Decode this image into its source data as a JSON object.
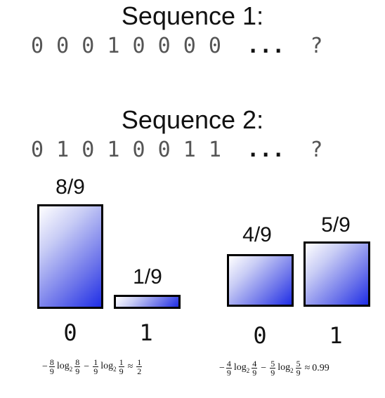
{
  "sequence1": {
    "title": "Sequence 1:",
    "digits": "0 0 0 1 0 0 0 0",
    "ellipsis": "...",
    "question": "?"
  },
  "sequence2": {
    "title": "Sequence 2:",
    "digits": "0 1 0 1 0 0 1 1",
    "ellipsis": "...",
    "question": "?"
  },
  "distribution1": {
    "bars": [
      {
        "symbol": "0",
        "label": "8/9",
        "value": 0.8889
      },
      {
        "symbol": "1",
        "label": "1/9",
        "value": 0.1111
      }
    ],
    "formula": {
      "lead": "−",
      "f1_num": "8",
      "f1_den": "9",
      "log": "log",
      "base": "2",
      "f2_num": "8",
      "f2_den": "9",
      "minus": "−",
      "f3_num": "1",
      "f3_den": "9",
      "f4_num": "1",
      "f4_den": "9",
      "approx": "≈",
      "res_num": "1",
      "res_den": "2"
    }
  },
  "distribution2": {
    "bars": [
      {
        "symbol": "0",
        "label": "4/9",
        "value": 0.4444
      },
      {
        "symbol": "1",
        "label": "5/9",
        "value": 0.5556
      }
    ],
    "formula": {
      "lead": "−",
      "f1_num": "4",
      "f1_den": "9",
      "log": "log",
      "base": "2",
      "f2_num": "4",
      "f2_den": "9",
      "minus": "−",
      "f3_num": "5",
      "f3_den": "9",
      "f4_num": "5",
      "f4_den": "9",
      "approx": "≈",
      "result": "0.99"
    }
  },
  "colors": {
    "bar_dark": "#1f2ee6",
    "bar_light": "#ffffff",
    "border": "#000000"
  }
}
